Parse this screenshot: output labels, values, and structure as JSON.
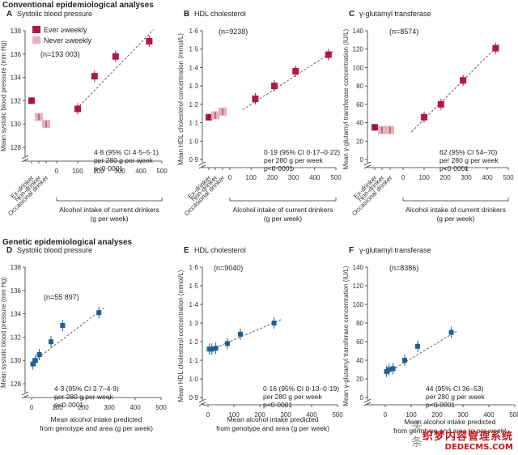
{
  "sections": {
    "conventional": "Conventional epidemiological analyses",
    "genetic": "Genetic epidemiological analyses"
  },
  "colors": {
    "ever": "#b0174b",
    "never": "#e3b2bd",
    "genetic": "#1f5f93",
    "axis": "#333333",
    "trend": "#444444"
  },
  "legend": {
    "ever_label": "Ever ≥weekly",
    "never_label": "Never ≥weekly"
  },
  "watermark": {
    "brand": "头条",
    "line1": "织梦内容管理系统",
    "line2": "DEDECMS.COM"
  },
  "chart_data": [
    {
      "id": "A",
      "type": "scatter",
      "letter": "A",
      "title": "Systolic blood pressure",
      "n_label": "(n=193 003)",
      "ylabel": "Mean systolic blood pressure (mm Hg)",
      "xlabel": "Alcohol intake of current drinkers (g per week)",
      "ylim": [
        128,
        138
      ],
      "yticks": [
        "128",
        "130",
        "132",
        "134",
        "136",
        "138"
      ],
      "xlim": [
        0,
        500
      ],
      "xticks": [
        "0",
        "100",
        "200",
        "300",
        "400",
        "500"
      ],
      "categories": [
        "Ex-drinker",
        "Non-drinker",
        "Occasional drinker"
      ],
      "category_points": [
        {
          "category": "Ex-drinker",
          "y": 132.0,
          "group": "ever"
        },
        {
          "category": "Non-drinker",
          "y": 130.6,
          "group": "never"
        },
        {
          "category": "Occasional drinker",
          "y": 130.0,
          "group": "never"
        }
      ],
      "points": [
        {
          "x": 100,
          "y": 131.3
        },
        {
          "x": 180,
          "y": 134.1
        },
        {
          "x": 280,
          "y": 135.8
        },
        {
          "x": 440,
          "y": 137.1
        }
      ],
      "trend": [
        {
          "x": 95,
          "y": 131.3
        },
        {
          "x": 460,
          "y": 138.1
        }
      ],
      "stats": [
        "4·8 (95% CI 4·5–5·1)",
        "per 280 g per week",
        "p<0·0001"
      ]
    },
    {
      "id": "B",
      "type": "scatter",
      "letter": "B",
      "title": "HDL cholesterol",
      "n_label": "(n=9238)",
      "ylabel": "Mean HDL cholesterol concentration (mmol/L)",
      "xlabel": "Alcohol intake of current drinkers (g per week)",
      "ylim": [
        0.9,
        1.6
      ],
      "yticks": [
        "0·9",
        "1·0",
        "1·1",
        "1·2",
        "1·3",
        "1·4",
        "1·5",
        "1·6"
      ],
      "xlim": [
        0,
        500
      ],
      "xticks": [
        "0",
        "100",
        "200",
        "300",
        "400",
        "500"
      ],
      "categories": [
        "Ex-drinker",
        "Non-drinker",
        "Occasional drinker"
      ],
      "category_points": [
        {
          "category": "Ex-drinker",
          "y": 1.13,
          "group": "ever"
        },
        {
          "category": "Non-drinker",
          "y": 1.14,
          "group": "never"
        },
        {
          "category": "Occasional drinker",
          "y": 1.16,
          "group": "never"
        }
      ],
      "points": [
        {
          "x": 120,
          "y": 1.23
        },
        {
          "x": 210,
          "y": 1.3
        },
        {
          "x": 310,
          "y": 1.38
        },
        {
          "x": 465,
          "y": 1.47
        }
      ],
      "trend": [
        {
          "x": 60,
          "y": 1.17
        },
        {
          "x": 490,
          "y": 1.49
        }
      ],
      "stats": [
        "0·19 (95% CI 0·17–0·22)",
        "per 280 g per week",
        "p<0·0001"
      ]
    },
    {
      "id": "C",
      "type": "scatter",
      "letter": "C",
      "title": "γ-glutamyl transferase",
      "n_label": "(n=8574)",
      "ylabel": "Mean γ-glutamyl transferase concentration (IU/L)",
      "xlabel": "Alcohol intake of current drinkers (g per week)",
      "ylim": [
        0,
        140
      ],
      "yticks": [
        "0",
        "20",
        "40",
        "60",
        "80",
        "100",
        "120",
        "140"
      ],
      "xlim": [
        0,
        500
      ],
      "xticks": [
        "0",
        "100",
        "200",
        "300",
        "400",
        "500"
      ],
      "categories": [
        "Ex-drinker",
        "Non-drinker",
        "Occasional drinker"
      ],
      "category_points": [
        {
          "category": "Ex-drinker",
          "y": 35,
          "group": "ever"
        },
        {
          "category": "Non-drinker",
          "y": 32,
          "group": "never"
        },
        {
          "category": "Occasional drinker",
          "y": 32,
          "group": "never"
        }
      ],
      "points": [
        {
          "x": 100,
          "y": 46
        },
        {
          "x": 180,
          "y": 60
        },
        {
          "x": 285,
          "y": 86
        },
        {
          "x": 440,
          "y": 121
        }
      ],
      "trend": [
        {
          "x": 40,
          "y": 30
        },
        {
          "x": 460,
          "y": 126
        }
      ],
      "stats": [
        "62 (95% CI 54–70)",
        "per 280 g per week",
        "p<0·0001"
      ]
    },
    {
      "id": "D",
      "type": "scatter",
      "letter": "D",
      "title": "Systolic blood pressure",
      "n_label": "(n=55 897)",
      "ylabel": "Mean systolic blood pressure (mm Hg)",
      "xlabel": "Mean alcohol intake predicted from genotype and area (g per week)",
      "ylim": [
        128,
        138
      ],
      "yticks": [
        "128",
        "130",
        "132",
        "134",
        "136",
        "138"
      ],
      "xlim": [
        0,
        500
      ],
      "xticks": [
        "0",
        "100",
        "200",
        "300",
        "400",
        "500"
      ],
      "points": [
        {
          "x": 5,
          "y": 129.7
        },
        {
          "x": 15,
          "y": 130.0
        },
        {
          "x": 30,
          "y": 130.5
        },
        {
          "x": 75,
          "y": 131.6
        },
        {
          "x": 120,
          "y": 133.0
        },
        {
          "x": 260,
          "y": 134.1
        }
      ],
      "trend": [
        {
          "x": 0,
          "y": 129.8
        },
        {
          "x": 280,
          "y": 134.5
        }
      ],
      "stats": [
        "4·3 (95% CI 3·7–4·9)",
        "per 280 g per week",
        "p<0·0001"
      ]
    },
    {
      "id": "E",
      "type": "scatter",
      "letter": "E",
      "title": "HDL cholesterol",
      "n_label": "(n=9040)",
      "ylabel": "Mean HDL cholesterol concentration (mmol/L)",
      "xlabel": "Mean alcohol intake predicted from genotype and area (g per week)",
      "ylim": [
        0.9,
        1.6
      ],
      "yticks": [
        "0·9",
        "1·0",
        "1·1",
        "1·2",
        "1·3",
        "1·4",
        "1·5",
        "1·6"
      ],
      "xlim": [
        0,
        500
      ],
      "xticks": [
        "0",
        "100",
        "200",
        "300",
        "400",
        "500"
      ],
      "points": [
        {
          "x": 5,
          "y": 1.16
        },
        {
          "x": 15,
          "y": 1.16
        },
        {
          "x": 30,
          "y": 1.165
        },
        {
          "x": 75,
          "y": 1.19
        },
        {
          "x": 125,
          "y": 1.24
        },
        {
          "x": 255,
          "y": 1.3
        }
      ],
      "trend": [
        {
          "x": 0,
          "y": 1.15
        },
        {
          "x": 285,
          "y": 1.32
        }
      ],
      "stats": [
        "0·16 (95% CI 0·13–0·19)",
        "per 280 g per week",
        "p<0·0001"
      ]
    },
    {
      "id": "F",
      "type": "scatter",
      "letter": "F",
      "title": "γ-glutamyl transferase",
      "n_label": "(n=8386)",
      "ylabel": "Mean γ-glutamyl transferase concentration (IU/L)",
      "xlabel": "Mean alcohol intake predicted from genotype and area (g per week)",
      "ylim": [
        0,
        140
      ],
      "yticks": [
        "0",
        "20",
        "40",
        "60",
        "80",
        "100",
        "120",
        "140"
      ],
      "xlim": [
        0,
        500
      ],
      "xticks": [
        "0",
        "100",
        "200",
        "300",
        "400",
        "500"
      ],
      "points": [
        {
          "x": 5,
          "y": 28
        },
        {
          "x": 15,
          "y": 30
        },
        {
          "x": 30,
          "y": 31
        },
        {
          "x": 75,
          "y": 40
        },
        {
          "x": 125,
          "y": 55
        },
        {
          "x": 255,
          "y": 70
        }
      ],
      "trend": [
        {
          "x": 0,
          "y": 25
        },
        {
          "x": 280,
          "y": 72
        }
      ],
      "stats": [
        "44 (95% CI 36–53)",
        "per 280 g per week",
        "p<0·0001"
      ]
    }
  ]
}
